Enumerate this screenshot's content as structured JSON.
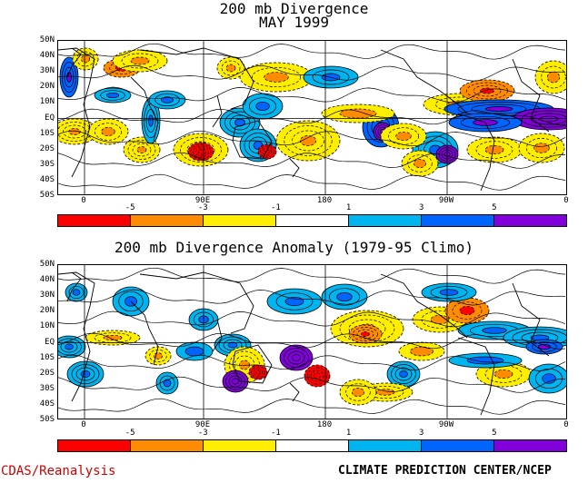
{
  "top_panel": {
    "title_line1": "200 mb Divergence",
    "title_line2": "MAY 1999"
  },
  "bottom_panel": {
    "title": "200 mb Divergence Anomaly (1979-95 Climo)"
  },
  "lat_labels": [
    "50N",
    "40N",
    "30N",
    "20N",
    "10N",
    "EQ",
    "10S",
    "20S",
    "30S",
    "40S",
    "50S"
  ],
  "lon_labels": [
    "0",
    "90E",
    "180",
    "90W",
    "0"
  ],
  "colorbar": {
    "colors": [
      "#ff0000",
      "#ff8c00",
      "#ffee00",
      "#ffffff",
      "#00b4f0",
      "#0064ff",
      "#8200dc"
    ],
    "tick_labels": [
      "-5",
      "-3",
      "-1",
      "1",
      "3",
      "5"
    ]
  },
  "footer": {
    "left": "CDAS/Reanalysis",
    "right": "CLIMATE PREDICTION CENTER/NCEP",
    "left_color": "#d00000"
  }
}
